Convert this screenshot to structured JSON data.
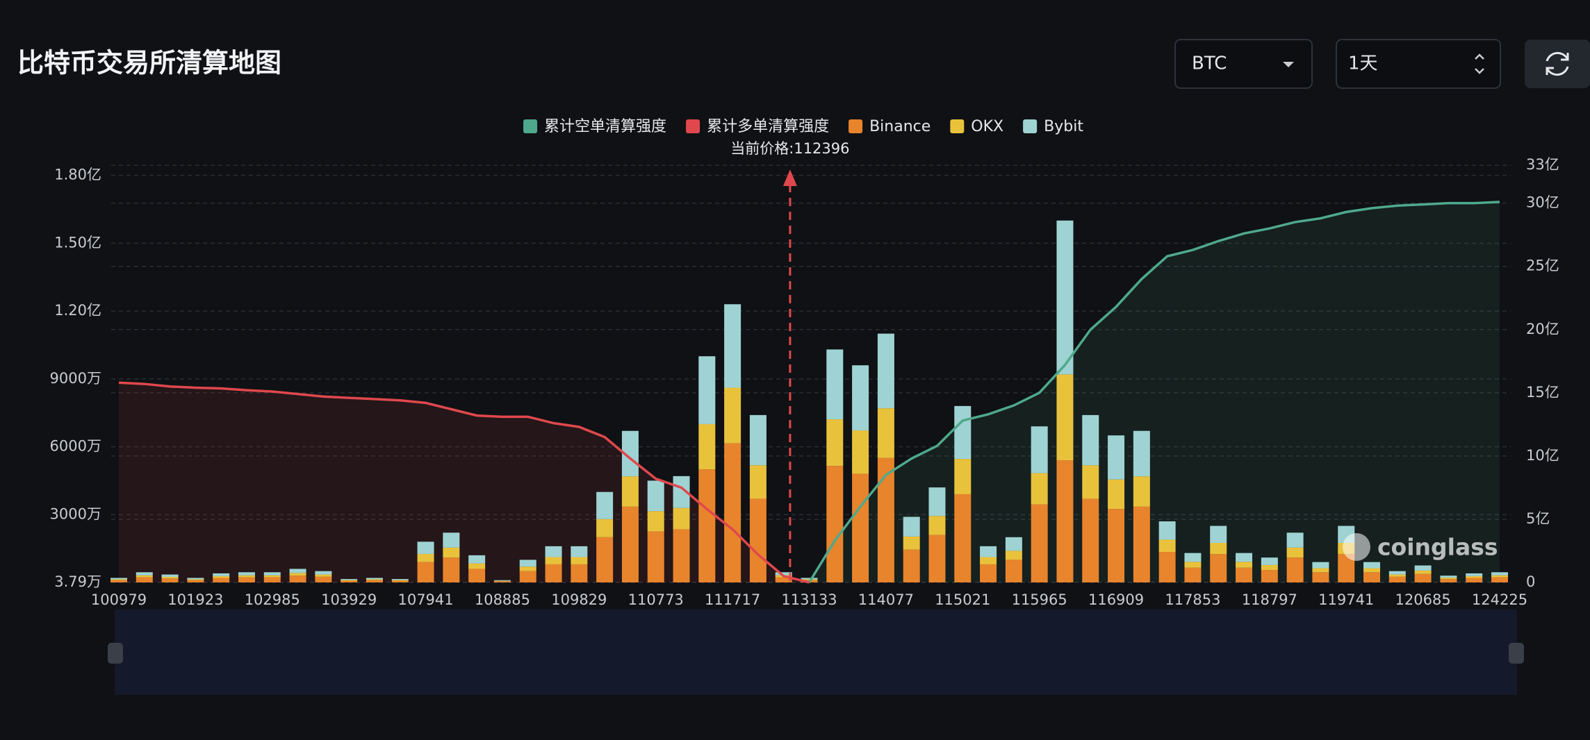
{
  "chart_data": {
    "type": "bar",
    "title": "比特币交易所清算地图",
    "controls": {
      "symbol": "BTC",
      "interval": "1天"
    },
    "annotation": "当前价格:112396",
    "watermark": "coinglass",
    "grid": true,
    "categories": [
      "100979",
      null,
      null,
      "101923",
      null,
      null,
      "102985",
      null,
      null,
      "103929",
      null,
      null,
      "107941",
      null,
      null,
      "108885",
      null,
      null,
      "109829",
      null,
      null,
      "110773",
      null,
      null,
      "111717",
      null,
      null,
      "113133",
      null,
      null,
      "114077",
      null,
      null,
      "115021",
      null,
      null,
      "115965",
      null,
      null,
      "116909",
      null,
      null,
      "117853",
      null,
      null,
      "118797",
      null,
      null,
      "119741",
      null,
      null,
      "120685",
      null,
      null,
      "124225"
    ],
    "ylim": [
      37900,
      184500000
    ],
    "yticks": [
      {
        "value": 37900,
        "label": "3.79万"
      },
      {
        "value": 30000000,
        "label": "3000万"
      },
      {
        "value": 60000000,
        "label": "6000万"
      },
      {
        "value": 90000000,
        "label": "9000万"
      },
      {
        "value": 120000000,
        "label": "1.20亿"
      },
      {
        "value": 150000000,
        "label": "1.50亿"
      },
      {
        "value": 180000000,
        "label": "1.80亿"
      }
    ],
    "y2lim": [
      0,
      3300000000
    ],
    "y2ticks": [
      0,
      {
        "value": 500000000,
        "label": "5亿"
      },
      {
        "value": 1000000000,
        "label": "10亿"
      },
      {
        "value": 1500000000,
        "label": "15亿"
      },
      {
        "value": 2000000000,
        "label": "20亿"
      },
      {
        "value": 2500000000,
        "label": "25亿"
      },
      {
        "value": 3000000000,
        "label": "30亿"
      },
      {
        "value": 3300000000,
        "label": "33亿"
      }
    ],
    "series": [
      {
        "name": "累计空单清算强度",
        "type": "line",
        "axis": "y2",
        "color": "#4fa98c",
        "values": [
          null,
          null,
          null,
          null,
          null,
          null,
          null,
          null,
          null,
          null,
          null,
          null,
          null,
          null,
          null,
          null,
          null,
          null,
          null,
          null,
          null,
          null,
          null,
          null,
          null,
          null,
          null,
          0,
          330000000,
          600000000,
          850000000,
          980000000,
          1080000000,
          1280000000,
          1330000000,
          1400000000,
          1500000000,
          1720000000,
          2000000000,
          2180000000,
          2400000000,
          2580000000,
          2630000000,
          2700000000,
          2760000000,
          2800000000,
          2850000000,
          2880000000,
          2930000000,
          2960000000,
          2980000000,
          2990000000,
          3000000000,
          3000000000,
          3010000000
        ]
      },
      {
        "name": "累计多单清算强度",
        "type": "line",
        "axis": "y2",
        "color": "#e0484d",
        "values": [
          1580000000,
          1570000000,
          1550000000,
          1540000000,
          1535000000,
          1520000000,
          1510000000,
          1490000000,
          1470000000,
          1460000000,
          1450000000,
          1440000000,
          1420000000,
          1370000000,
          1320000000,
          1310000000,
          1310000000,
          1260000000,
          1230000000,
          1150000000,
          980000000,
          820000000,
          750000000,
          580000000,
          420000000,
          220000000,
          50000000,
          0,
          null,
          null,
          null,
          null,
          null,
          null,
          null,
          null,
          null,
          null,
          null,
          null,
          null,
          null,
          null,
          null,
          null,
          null,
          null,
          null,
          null,
          null,
          null,
          null,
          null,
          null,
          null
        ]
      },
      {
        "name": "Binance",
        "color": "#e8842c",
        "values": [
          1000000,
          2250000,
          1750000,
          1000000,
          2000000,
          2250000,
          2250000,
          3000000,
          2500000,
          750000,
          1000000,
          750000,
          9000000,
          11000000,
          6000000,
          500000,
          5000000,
          8000000,
          8000000,
          20000000,
          33500000,
          22500000,
          23500000,
          50000000,
          61500000,
          37000000,
          2250000,
          1000000,
          51500000,
          48000000,
          55000000,
          14500000,
          21000000,
          39000000,
          8000000,
          10000000,
          34500000,
          54000000,
          37000000,
          32500000,
          33500000,
          13500000,
          6500000,
          12500000,
          6500000,
          5500000,
          11000000,
          4500000,
          12500000,
          4500000,
          2500000,
          3750000,
          1500000,
          2000000,
          2250000
        ]
      },
      {
        "name": "OKX",
        "color": "#e9c23c",
        "values": [
          400000,
          900000,
          700000,
          400000,
          800000,
          900000,
          900000,
          1200000,
          1000000,
          300000,
          400000,
          300000,
          3600000,
          4400000,
          2400000,
          200000,
          2000000,
          3200000,
          3200000,
          8000000,
          13400000,
          9000000,
          9400000,
          20000000,
          24600000,
          14800000,
          900000,
          400000,
          20600000,
          19200000,
          22000000,
          5800000,
          8400000,
          15600000,
          3200000,
          4000000,
          13800000,
          38000000,
          14800000,
          13000000,
          13400000,
          5400000,
          2600000,
          5000000,
          2600000,
          2200000,
          4400000,
          1800000,
          5000000,
          1800000,
          1000000,
          1500000,
          600000,
          800000,
          900000
        ]
      },
      {
        "name": "Bybit",
        "color": "#9fd3d3",
        "values": [
          600000,
          1350000,
          1050000,
          600000,
          1200000,
          1350000,
          1350000,
          1800000,
          1500000,
          450000,
          600000,
          450000,
          5400000,
          6600000,
          3600000,
          300000,
          3000000,
          4800000,
          4800000,
          12000000,
          20100000,
          13500000,
          14100000,
          30000000,
          36900000,
          22200000,
          1350000,
          600000,
          30900000,
          28800000,
          33000000,
          8700000,
          12600000,
          23400000,
          4800000,
          6000000,
          20700000,
          68000000,
          22200000,
          19500000,
          20100000,
          8100000,
          3900000,
          7500000,
          3900000,
          3300000,
          6600000,
          2700000,
          7500000,
          2700000,
          1500000,
          2250000,
          900000,
          1200000,
          1350000
        ]
      }
    ]
  }
}
